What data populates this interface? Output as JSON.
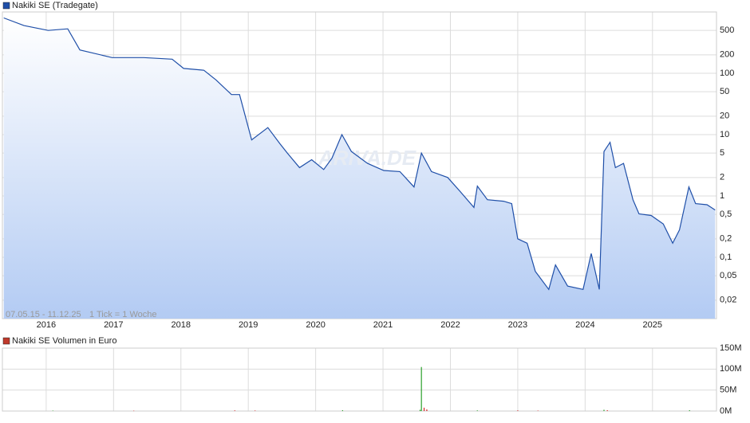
{
  "chart_data": [
    {
      "type": "line",
      "log_scale": true,
      "grid": true,
      "series": [
        {
          "name": "Nakiki SE (Tradegate)",
          "color": "#1f4fa8",
          "values": [
            800,
            600,
            500,
            530,
            240,
            180,
            180,
            170,
            120,
            112,
            78,
            45,
            45,
            8.2,
            13,
            7.1,
            5,
            2.9,
            3.9,
            2.7,
            4.1,
            10,
            5.3,
            3.4,
            2.6,
            2.5,
            1.4,
            5,
            2.5,
            2,
            1.2,
            0.65,
            1.45,
            0.87,
            0.82,
            0.75,
            0.2,
            0.17,
            0.059,
            0.03,
            0.075,
            0.034,
            0.03,
            0.115,
            0.03,
            5.3,
            7.5,
            2.9,
            3.4,
            0.87,
            0.51,
            0.48,
            0.35,
            0.17,
            0.28,
            1.4,
            0.75,
            0.72,
            0.59
          ]
        }
      ],
      "x": [
        2015.37,
        2015.67,
        2016.03,
        2016.32,
        2016.5,
        2016.98,
        2017.45,
        2017.87,
        2018.04,
        2018.34,
        2018.52,
        2018.75,
        2018.87,
        2019.05,
        2019.29,
        2019.47,
        2019.58,
        2019.76,
        2019.94,
        2020.12,
        2020.24,
        2020.39,
        2020.53,
        2020.77,
        2021.01,
        2021.25,
        2021.46,
        2021.57,
        2021.72,
        2021.96,
        2022.14,
        2022.35,
        2022.4,
        2022.55,
        2022.79,
        2022.91,
        2023.0,
        2023.14,
        2023.26,
        2023.46,
        2023.56,
        2023.74,
        2023.97,
        2024.09,
        2024.21,
        2024.28,
        2024.37,
        2024.45,
        2024.57,
        2024.71,
        2024.8,
        2024.98,
        2025.16,
        2025.3,
        2025.4,
        2025.54,
        2025.64,
        2025.81,
        2025.93
      ],
      "xlim": [
        2015.35,
        2025.95
      ],
      "xticks": [
        2016,
        2017,
        2018,
        2019,
        2020,
        2021,
        2022,
        2023,
        2024,
        2025
      ],
      "ylim": [
        0.01,
        1000
      ],
      "yticks": [
        500,
        200,
        100,
        50,
        20,
        10,
        5,
        2,
        1,
        {
          "value": 0.5,
          "label": "0,5"
        },
        {
          "value": 0.2,
          "label": "0,2"
        },
        {
          "value": 0.1,
          "label": "0,1"
        },
        {
          "value": 0.05,
          "label": "0,05"
        },
        {
          "value": 0.02,
          "label": "0,02"
        }
      ],
      "annotations": [
        "07.05.15 - 11.12.25",
        "1 Tick = 1 Woche"
      ],
      "watermark": "ARIVA.DE"
    },
    {
      "type": "bar",
      "legend": "Nakiki SE Volumen in Euro",
      "color": "#c0392b",
      "x": [
        2016.1,
        2017.3,
        2018.8,
        2019.1,
        2020.4,
        2021.55,
        2021.57,
        2021.61,
        2021.65,
        2022.4,
        2023.0,
        2023.3,
        2024.28,
        2024.33,
        2025.55
      ],
      "values": [
        1000000,
        800000,
        1500000,
        1200000,
        2000000,
        3000000,
        105000000,
        8000000,
        4000000,
        1500000,
        1500000,
        1000000,
        3000000,
        2000000,
        2000000
      ],
      "colors": [
        "#2ca02c",
        "#d62728",
        "#d62728",
        "#d62728",
        "#2ca02c",
        "#2ca02c",
        "#2ca02c",
        "#d62728",
        "#d62728",
        "#2ca02c",
        "#d62728",
        "#d62728",
        "#2ca02c",
        "#d62728",
        "#2ca02c"
      ],
      "xlim": [
        2015.35,
        2025.95
      ],
      "ylim": [
        0,
        150000000
      ],
      "yticks": [
        {
          "value": 150000000,
          "label": "150M"
        },
        {
          "value": 100000000,
          "label": "100M"
        },
        {
          "value": 50000000,
          "label": "50M"
        },
        {
          "value": 0,
          "label": "0M"
        }
      ]
    }
  ]
}
